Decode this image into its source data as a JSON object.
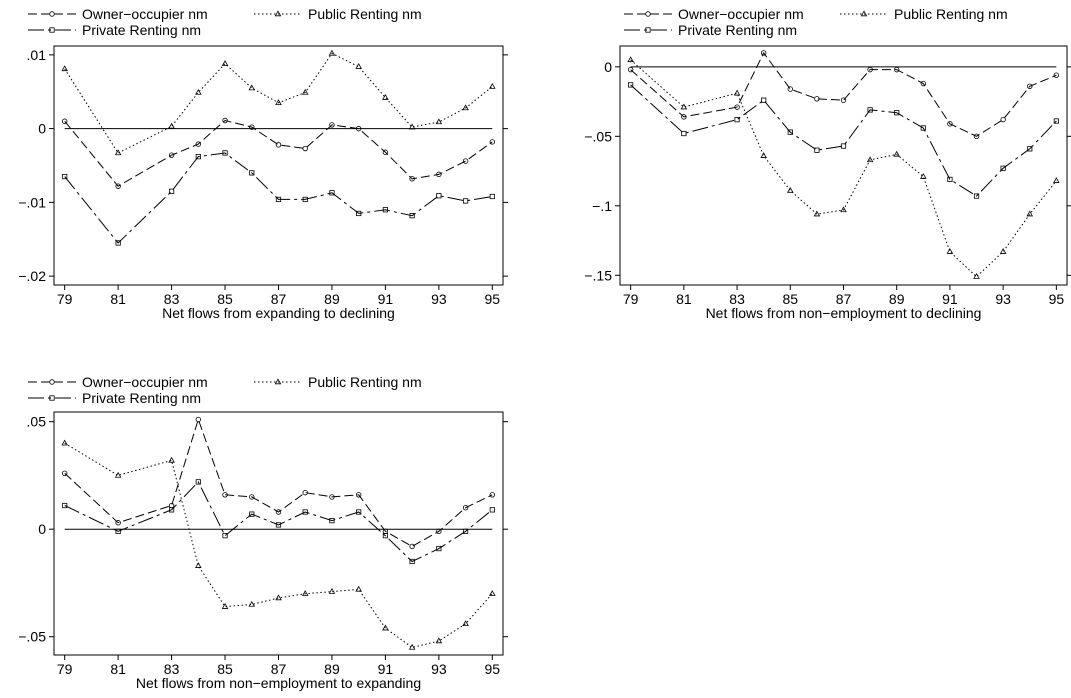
{
  "legend_labels": {
    "owner": "Owner−occupier nm",
    "public": "Public Renting nm",
    "private": "Private Renting nm"
  },
  "chart_data": [
    {
      "type": "line",
      "xlabel": "Net flows from expanding to declining",
      "x": [
        79,
        81,
        83,
        84,
        85,
        86,
        87,
        88,
        89,
        90,
        91,
        92,
        93,
        94,
        95
      ],
      "xticks": [
        "79",
        "81",
        "83",
        "85",
        "87",
        "89",
        "91",
        "93",
        "95"
      ],
      "yticks": [
        {
          "v": -0.02,
          "label": "−.02"
        },
        {
          "v": -0.01,
          "label": "−.01"
        },
        {
          "v": 0,
          "label": "0"
        },
        {
          "v": 0.01,
          "label": ".01"
        }
      ],
      "xlim": [
        78.6,
        95.4
      ],
      "ylim": [
        -0.0212,
        0.0112
      ],
      "zero_line": true,
      "series": [
        {
          "name": "Owner−occupier nm",
          "key": "owner",
          "values": [
            0.001,
            -0.0078,
            -0.0036,
            -0.0021,
            0.0011,
            0.0002,
            -0.0022,
            -0.0027,
            0.0005,
            0.0,
            -0.0032,
            -0.0068,
            -0.0062,
            -0.0044,
            -0.0018
          ]
        },
        {
          "name": "Public Renting nm",
          "key": "public",
          "values": [
            0.0081,
            -0.0033,
            0.0003,
            0.0049,
            0.0088,
            0.0055,
            0.0035,
            0.0049,
            0.0102,
            0.0084,
            0.0042,
            0.0002,
            0.0009,
            0.0028,
            0.0057
          ]
        },
        {
          "name": "Private Renting nm",
          "key": "private",
          "values": [
            -0.0065,
            -0.0155,
            -0.0085,
            -0.0038,
            -0.0033,
            -0.006,
            -0.0096,
            -0.0096,
            -0.0087,
            -0.0115,
            -0.011,
            -0.0118,
            -0.0091,
            -0.0098,
            -0.0092
          ]
        }
      ]
    },
    {
      "type": "line",
      "xlabel": "Net flows from non−employment to declining",
      "x": [
        79,
        81,
        83,
        84,
        85,
        86,
        87,
        88,
        89,
        90,
        91,
        92,
        93,
        94,
        95
      ],
      "xticks": [
        "79",
        "81",
        "83",
        "85",
        "87",
        "89",
        "91",
        "93",
        "95"
      ],
      "yticks": [
        {
          "v": -0.15,
          "label": "−.15"
        },
        {
          "v": -0.1,
          "label": "−.1"
        },
        {
          "v": -0.05,
          "label": "−.05"
        },
        {
          "v": 0,
          "label": "0"
        }
      ],
      "xlim": [
        78.6,
        95.4
      ],
      "ylim": [
        -0.157,
        0.015
      ],
      "zero_line": true,
      "series": [
        {
          "name": "Owner−occupier nm",
          "key": "owner",
          "values": [
            -0.002,
            -0.036,
            -0.029,
            0.01,
            -0.016,
            -0.023,
            -0.024,
            -0.002,
            -0.002,
            -0.012,
            -0.041,
            -0.05,
            -0.038,
            -0.014,
            -0.006
          ]
        },
        {
          "name": "Public Renting nm",
          "key": "public",
          "values": [
            0.005,
            -0.029,
            -0.019,
            -0.064,
            -0.089,
            -0.106,
            -0.103,
            -0.067,
            -0.063,
            -0.079,
            -0.133,
            -0.151,
            -0.133,
            -0.106,
            -0.082
          ]
        },
        {
          "name": "Private Renting nm",
          "key": "private",
          "values": [
            -0.013,
            -0.048,
            -0.038,
            -0.024,
            -0.047,
            -0.06,
            -0.057,
            -0.031,
            -0.033,
            -0.044,
            -0.081,
            -0.093,
            -0.073,
            -0.059,
            -0.039
          ]
        }
      ]
    },
    {
      "type": "line",
      "xlabel": "Net flows from non−employment to expanding",
      "x": [
        79,
        81,
        83,
        84,
        85,
        86,
        87,
        88,
        89,
        90,
        91,
        92,
        93,
        94,
        95
      ],
      "xticks": [
        "79",
        "81",
        "83",
        "85",
        "87",
        "89",
        "91",
        "93",
        "95"
      ],
      "yticks": [
        {
          "v": -0.05,
          "label": "−.05"
        },
        {
          "v": 0,
          "label": "0"
        },
        {
          "v": 0.05,
          "label": ".05"
        }
      ],
      "xlim": [
        78.6,
        95.4
      ],
      "ylim": [
        -0.0585,
        0.0545
      ],
      "zero_line": true,
      "series": [
        {
          "name": "Owner−occupier nm",
          "key": "owner",
          "values": [
            0.026,
            0.003,
            0.011,
            0.051,
            0.016,
            0.015,
            0.008,
            0.017,
            0.015,
            0.016,
            -0.001,
            -0.008,
            -0.001,
            0.01,
            0.016
          ]
        },
        {
          "name": "Public Renting nm",
          "key": "public",
          "values": [
            0.04,
            0.025,
            0.032,
            -0.017,
            -0.036,
            -0.035,
            -0.032,
            -0.03,
            -0.029,
            -0.028,
            -0.046,
            -0.055,
            -0.052,
            -0.044,
            -0.03
          ]
        },
        {
          "name": "Private Renting nm",
          "key": "private",
          "values": [
            0.011,
            -0.001,
            0.009,
            0.022,
            -0.003,
            0.007,
            0.002,
            0.008,
            0.004,
            0.008,
            -0.003,
            -0.015,
            -0.009,
            -0.001,
            0.009
          ]
        }
      ]
    }
  ]
}
